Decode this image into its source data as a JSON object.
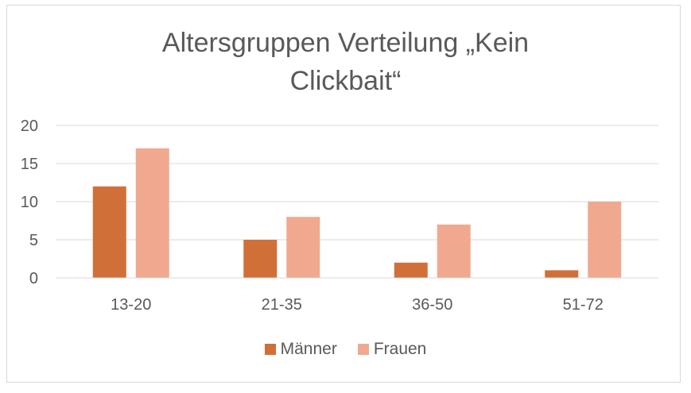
{
  "chart_data": {
    "type": "bar",
    "title_lines": [
      "Altersgruppen Verteilung „Kein",
      "Clickbait“"
    ],
    "categories": [
      "13-20",
      "21-35",
      "36-50",
      "51-72"
    ],
    "series": [
      {
        "name": "Männer",
        "values": [
          12,
          5,
          2,
          1
        ],
        "color": "#d07038"
      },
      {
        "name": "Frauen",
        "values": [
          17,
          8,
          7,
          10
        ],
        "color": "#f0a98f"
      }
    ],
    "ylim": [
      0,
      20
    ],
    "yticks": [
      "0",
      "5",
      "10",
      "15",
      "20"
    ],
    "grid": true,
    "legend_position": "bottom"
  }
}
